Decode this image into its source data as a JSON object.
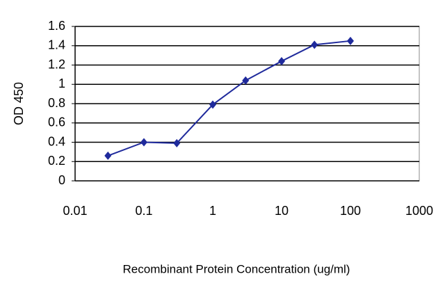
{
  "chart_data": {
    "type": "line",
    "x_label": "Recombinant Protein Concentration (ug/ml)",
    "y_label": "OD 450",
    "x": [
      0.03,
      0.1,
      0.3,
      1,
      3,
      10,
      30,
      100
    ],
    "series": [
      {
        "name": "OD 450",
        "color": "#1f2a9c",
        "values": [
          0.26,
          0.4,
          0.39,
          0.79,
          1.04,
          1.24,
          1.41,
          1.45
        ]
      }
    ],
    "xlog": true,
    "xlim": [
      0.01,
      1000
    ],
    "xticks": [
      0.01,
      0.1,
      1,
      10,
      100,
      1000
    ],
    "ylim": [
      0,
      1.6
    ],
    "yticks": [
      0,
      0.2,
      0.4,
      0.6,
      0.8,
      1,
      1.2,
      1.4,
      1.6
    ],
    "grid": true
  }
}
